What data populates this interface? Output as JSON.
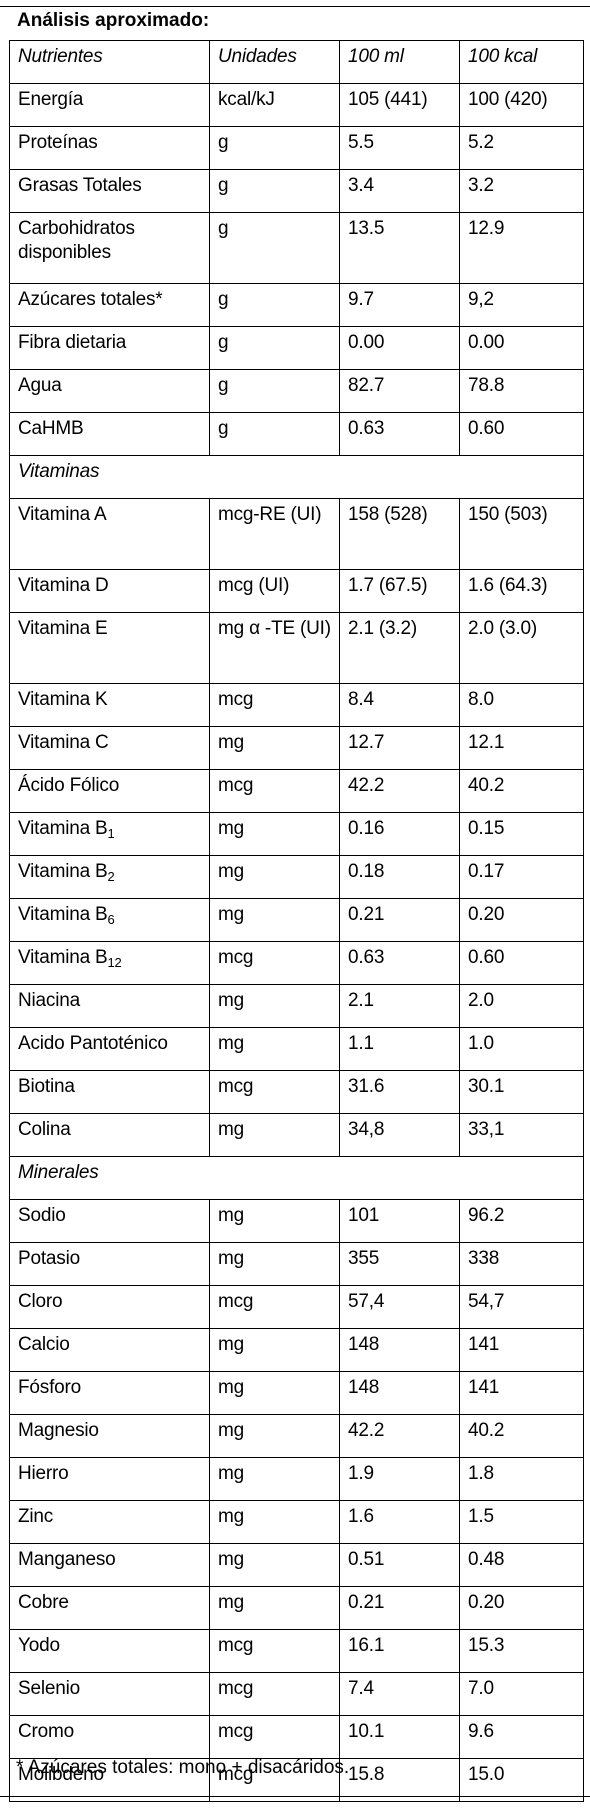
{
  "title": "Análisis aproximado:",
  "columns": [
    "Nutrientes",
    "Unidades",
    "100 ml",
    "100 kcal"
  ],
  "rows": [
    {
      "nutriente": "Energía",
      "unidad": "kcal/kJ",
      "ml": "105 (441)",
      "kcal": "100 (420)"
    },
    {
      "nutriente": "Proteínas",
      "unidad": "g",
      "ml": "5.5",
      "kcal": "5.2"
    },
    {
      "nutriente": "Grasas Totales",
      "unidad": "g",
      "ml": "3.4",
      "kcal": "3.2"
    },
    {
      "nutriente": "Carbohidratos disponibles",
      "unidad": "g",
      "ml": "13.5",
      "kcal": "12.9"
    },
    {
      "nutriente": "Azúcares totales*",
      "unidad": "g",
      "ml": "9.7",
      "kcal": "9,2"
    },
    {
      "nutriente": "Fibra dietaria",
      "unidad": "g",
      "ml": "0.00",
      "kcal": "0.00"
    },
    {
      "nutriente": "Agua",
      "unidad": "g",
      "ml": "82.7",
      "kcal": "78.8"
    },
    {
      "nutriente": "CaHMB",
      "unidad": "g",
      "ml": "0.63",
      "kcal": "0.60"
    }
  ],
  "section_vitaminas": "Vitaminas",
  "vitaminas": [
    {
      "nutriente": "Vitamina A",
      "unidad": "mcg-RE (UI)",
      "ml": "158 (528)",
      "kcal": "150 (503)"
    },
    {
      "nutriente": "Vitamina D",
      "unidad": "mcg (UI)",
      "ml": "1.7 (67.5)",
      "kcal": "1.6 (64.3)"
    },
    {
      "nutriente": "Vitamina E",
      "unidad": "mg α -TE (UI)",
      "ml": "2.1 (3.2)",
      "kcal": "2.0 (3.0)"
    },
    {
      "nutriente": "Vitamina K",
      "unidad": "mcg",
      "ml": "8.4",
      "kcal": "8.0"
    },
    {
      "nutriente": "Vitamina C",
      "unidad": "mg",
      "ml": "12.7",
      "kcal": "12.1"
    },
    {
      "nutriente": "Ácido Fólico",
      "unidad": "mcg",
      "ml": "42.2",
      "kcal": "40.2"
    },
    {
      "nutriente": "Vitamina B",
      "sub": "1",
      "unidad": "mg",
      "ml": "0.16",
      "kcal": "0.15"
    },
    {
      "nutriente": "Vitamina B",
      "sub": "2",
      "unidad": "mg",
      "ml": "0.18",
      "kcal": "0.17"
    },
    {
      "nutriente": "Vitamina B",
      "sub": "6",
      "unidad": "mg",
      "ml": "0.21",
      "kcal": "0.20"
    },
    {
      "nutriente": "Vitamina B",
      "sub": "12",
      "unidad": "mcg",
      "ml": "0.63",
      "kcal": "0.60"
    },
    {
      "nutriente": "Niacina",
      "unidad": "mg",
      "ml": "2.1",
      "kcal": "2.0"
    },
    {
      "nutriente": "Acido Pantoténico",
      "unidad": "mg",
      "ml": "1.1",
      "kcal": "1.0"
    },
    {
      "nutriente": "Biotina",
      "unidad": "mcg",
      "ml": "31.6",
      "kcal": "30.1"
    },
    {
      "nutriente": "Colina",
      "unidad": "mg",
      "ml": "34,8",
      "kcal": "33,1"
    }
  ],
  "section_minerales": "Minerales",
  "minerales": [
    {
      "nutriente": "Sodio",
      "unidad": "mg",
      "ml": "101",
      "kcal": "96.2"
    },
    {
      "nutriente": "Potasio",
      "unidad": "mg",
      "ml": "355",
      "kcal": "338"
    },
    {
      "nutriente": "Cloro",
      "unidad": "mcg",
      "ml": "57,4",
      "kcal": "54,7"
    },
    {
      "nutriente": "Calcio",
      "unidad": "mg",
      "ml": "148",
      "kcal": "141"
    },
    {
      "nutriente": "Fósforo",
      "unidad": "mg",
      "ml": "148",
      "kcal": "141"
    },
    {
      "nutriente": "Magnesio",
      "unidad": "mg",
      "ml": "42.2",
      "kcal": "40.2"
    },
    {
      "nutriente": "Hierro",
      "unidad": "mg",
      "ml": "1.9",
      "kcal": "1.8"
    },
    {
      "nutriente": "Zinc",
      "unidad": "mg",
      "ml": "1.6",
      "kcal": "1.5"
    },
    {
      "nutriente": "Manganeso",
      "unidad": "mg",
      "ml": "0.51",
      "kcal": "0.48"
    },
    {
      "nutriente": "Cobre",
      "unidad": "mg",
      "ml": "0.21",
      "kcal": "0.20"
    },
    {
      "nutriente": "Yodo",
      "unidad": "mcg",
      "ml": "16.1",
      "kcal": "15.3"
    },
    {
      "nutriente": "Selenio",
      "unidad": "mcg",
      "ml": "7.4",
      "kcal": "7.0"
    },
    {
      "nutriente": "Cromo",
      "unidad": "mcg",
      "ml": "10.1",
      "kcal": "9.6"
    },
    {
      "nutriente": "Molibdeno",
      "unidad": "mcg",
      "ml": "15.8",
      "kcal": "15.0"
    }
  ],
  "footnote": "* Azúcares totales: mono + disacáridos."
}
